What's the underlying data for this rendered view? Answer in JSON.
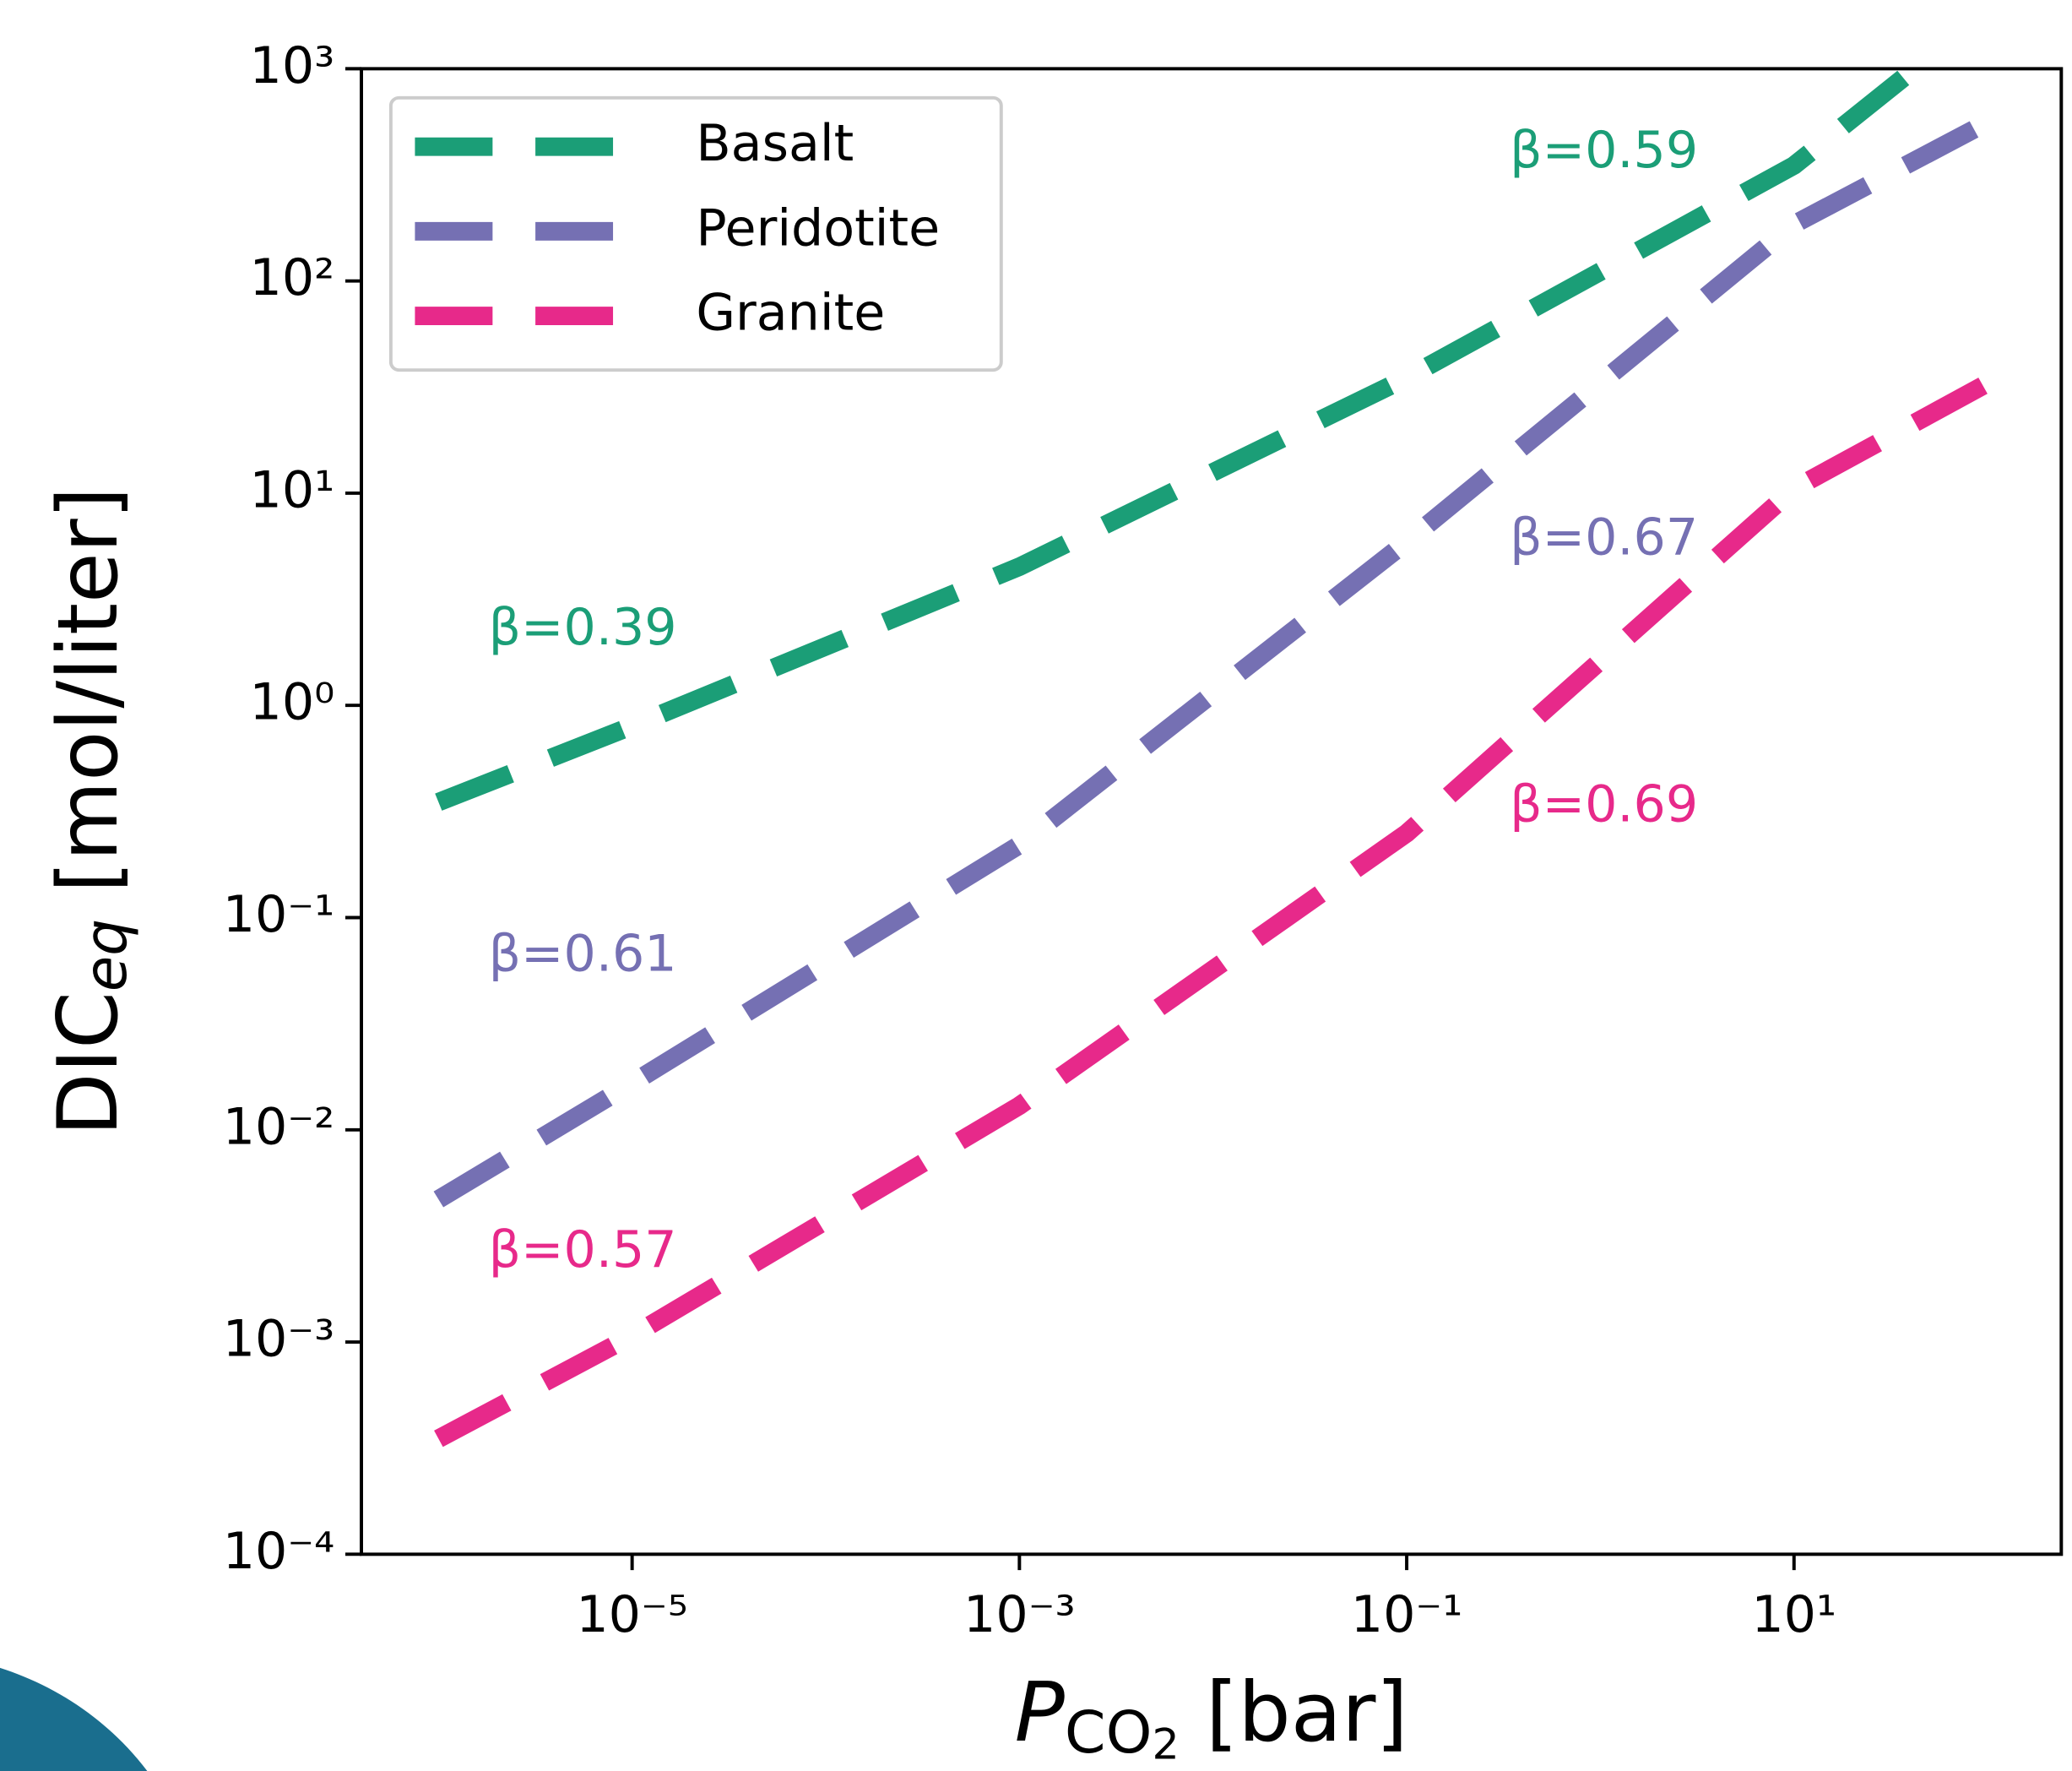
{
  "chart_data": {
    "type": "line",
    "xlabel": {
      "main": "P",
      "sub": "CO",
      "subsub": "2",
      "rest": " [bar]"
    },
    "ylabel": {
      "main": "DIC",
      "sub": "eq",
      "rest": " [mol/liter]"
    },
    "xscale": "log",
    "yscale": "log",
    "xlim": [
      4e-07,
      240
    ],
    "ylim": [
      0.0001,
      1000
    ],
    "xticks": [
      {
        "value": 1e-05,
        "label": "10⁻⁵"
      },
      {
        "value": 0.001,
        "label": "10⁻³"
      },
      {
        "value": 0.1,
        "label": "10⁻¹"
      },
      {
        "value": 10,
        "label": "10¹"
      }
    ],
    "yticks": [
      {
        "value": 0.0001,
        "label": "10⁻⁴"
      },
      {
        "value": 0.001,
        "label": "10⁻³"
      },
      {
        "value": 0.01,
        "label": "10⁻²"
      },
      {
        "value": 0.1,
        "label": "10⁻¹"
      },
      {
        "value": 1,
        "label": "10⁰"
      },
      {
        "value": 10,
        "label": "10¹"
      },
      {
        "value": 100,
        "label": "10²"
      },
      {
        "value": 1000,
        "label": "10³"
      }
    ],
    "legend": "upper left",
    "series": [
      {
        "name": "Basalt",
        "color": "#1b9e77",
        "x": [
          1e-06,
          1e-05,
          0.001,
          0.1,
          10,
          42
        ],
        "y": [
          0.35,
          0.8,
          4.5,
          35,
          350,
          1000
        ]
      },
      {
        "name": "Peridotite",
        "color": "#7570b3",
        "x": [
          1e-06,
          1e-05,
          0.001,
          0.1,
          10,
          100
        ],
        "y": [
          0.0047,
          0.0166,
          0.22,
          5.9,
          185,
          560
        ]
      },
      {
        "name": "Granite",
        "color": "#e7298a",
        "x": [
          1e-06,
          1e-05,
          0.001,
          0.1,
          10,
          100
        ],
        "y": [
          0.00035,
          0.00107,
          0.013,
          0.25,
          10.5,
          33
        ]
      }
    ],
    "annotations": [
      {
        "text": "β=0.39",
        "color": "#1b9e77"
      },
      {
        "text": "β=0.59",
        "color": "#1b9e77"
      },
      {
        "text": "β=0.61",
        "color": "#7570b3"
      },
      {
        "text": "β=0.67",
        "color": "#7570b3"
      },
      {
        "text": "β=0.57",
        "color": "#e7298a"
      },
      {
        "text": "β=0.69",
        "color": "#e7298a"
      }
    ]
  }
}
